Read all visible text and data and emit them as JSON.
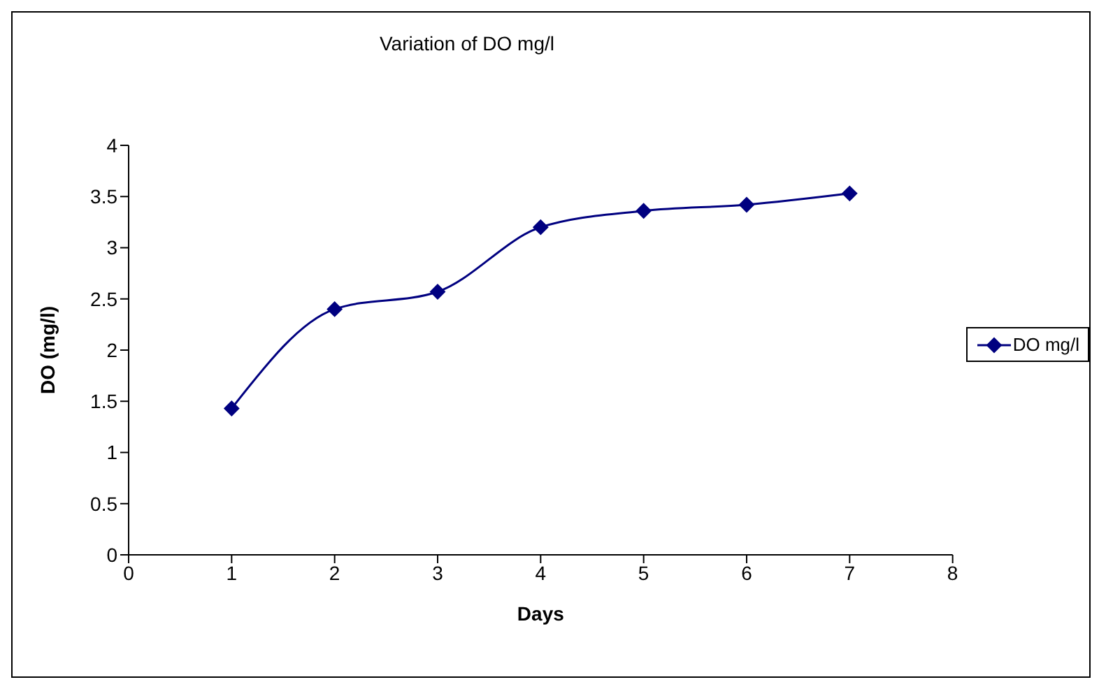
{
  "chart_data": {
    "type": "line",
    "title": "Variation of DO mg/l",
    "xlabel": "Days",
    "ylabel": "DO (mg/l)",
    "x": [
      1,
      2,
      3,
      4,
      5,
      6,
      7
    ],
    "series": [
      {
        "name": "DO mg/l",
        "color": "#000080",
        "values": [
          1.43,
          2.4,
          2.57,
          3.2,
          3.36,
          3.42,
          3.53
        ]
      }
    ],
    "xlim": [
      0,
      8
    ],
    "xticks": [
      0,
      1,
      2,
      3,
      4,
      5,
      6,
      7,
      8
    ],
    "ylim": [
      0,
      4
    ],
    "yticks": [
      0,
      0.5,
      1,
      1.5,
      2,
      2.5,
      3,
      3.5,
      4
    ],
    "grid": false,
    "legend": "right",
    "marker": "diamond",
    "line_style": "solid"
  }
}
